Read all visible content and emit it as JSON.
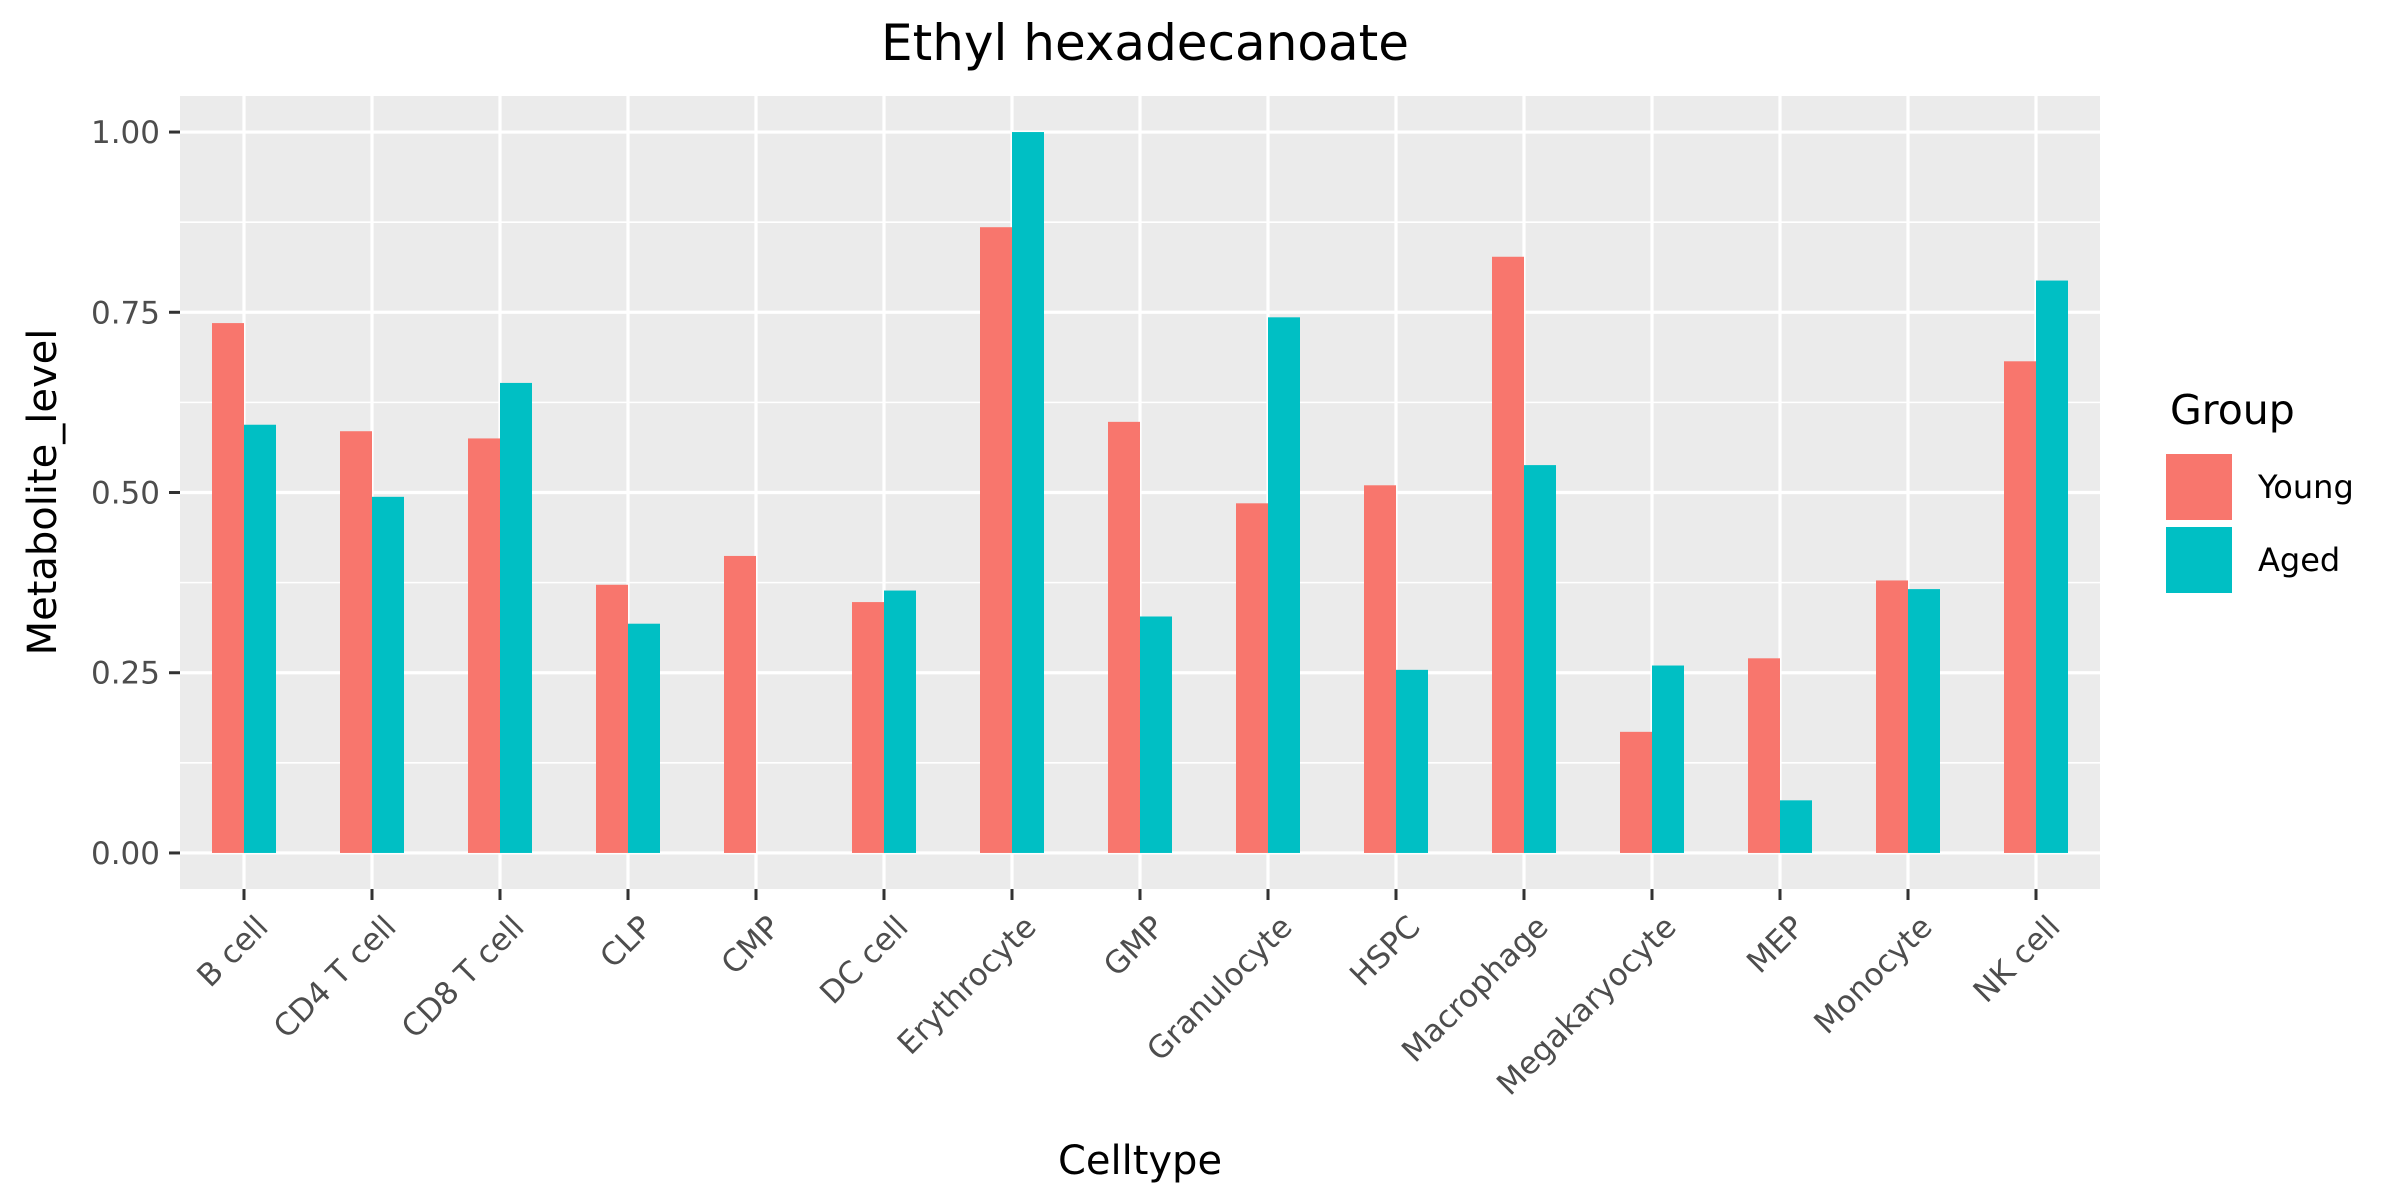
{
  "chart_data": {
    "type": "bar",
    "title": "Ethyl hexadecanoate",
    "xlabel": "Celltype",
    "ylabel": "Metabolite_level",
    "ylim": [
      -0.05,
      1.05
    ],
    "yticks": [
      0.0,
      0.25,
      0.5,
      0.75,
      1.0
    ],
    "ytick_labels": [
      "0.00",
      "0.25",
      "0.50",
      "0.75",
      "1.00"
    ],
    "grid": true,
    "legend": {
      "title": "Group",
      "position": "right"
    },
    "categories": [
      "B cell",
      "CD4 T cell",
      "CD8 T cell",
      "CLP",
      "CMP",
      "DC cell",
      "Erythrocyte",
      "GMP",
      "Granulocyte",
      "HSPC",
      "Macrophage",
      "Megakaryocyte",
      "MEP",
      "Monocyte",
      "NK cell"
    ],
    "series": [
      {
        "name": "Young",
        "color": "#F8766D",
        "values": [
          0.735,
          0.585,
          0.575,
          0.372,
          0.412,
          0.348,
          0.868,
          0.598,
          0.485,
          0.51,
          0.827,
          0.168,
          0.27,
          0.378,
          0.682
        ]
      },
      {
        "name": "Aged",
        "color": "#00BFC4",
        "values": [
          0.594,
          0.494,
          0.652,
          0.318,
          null,
          0.364,
          1.0,
          0.328,
          0.743,
          0.254,
          0.538,
          0.26,
          0.073,
          0.366,
          0.794
        ]
      }
    ],
    "panel_color": "#EBEBEB",
    "grid_color": "#FFFFFF"
  }
}
